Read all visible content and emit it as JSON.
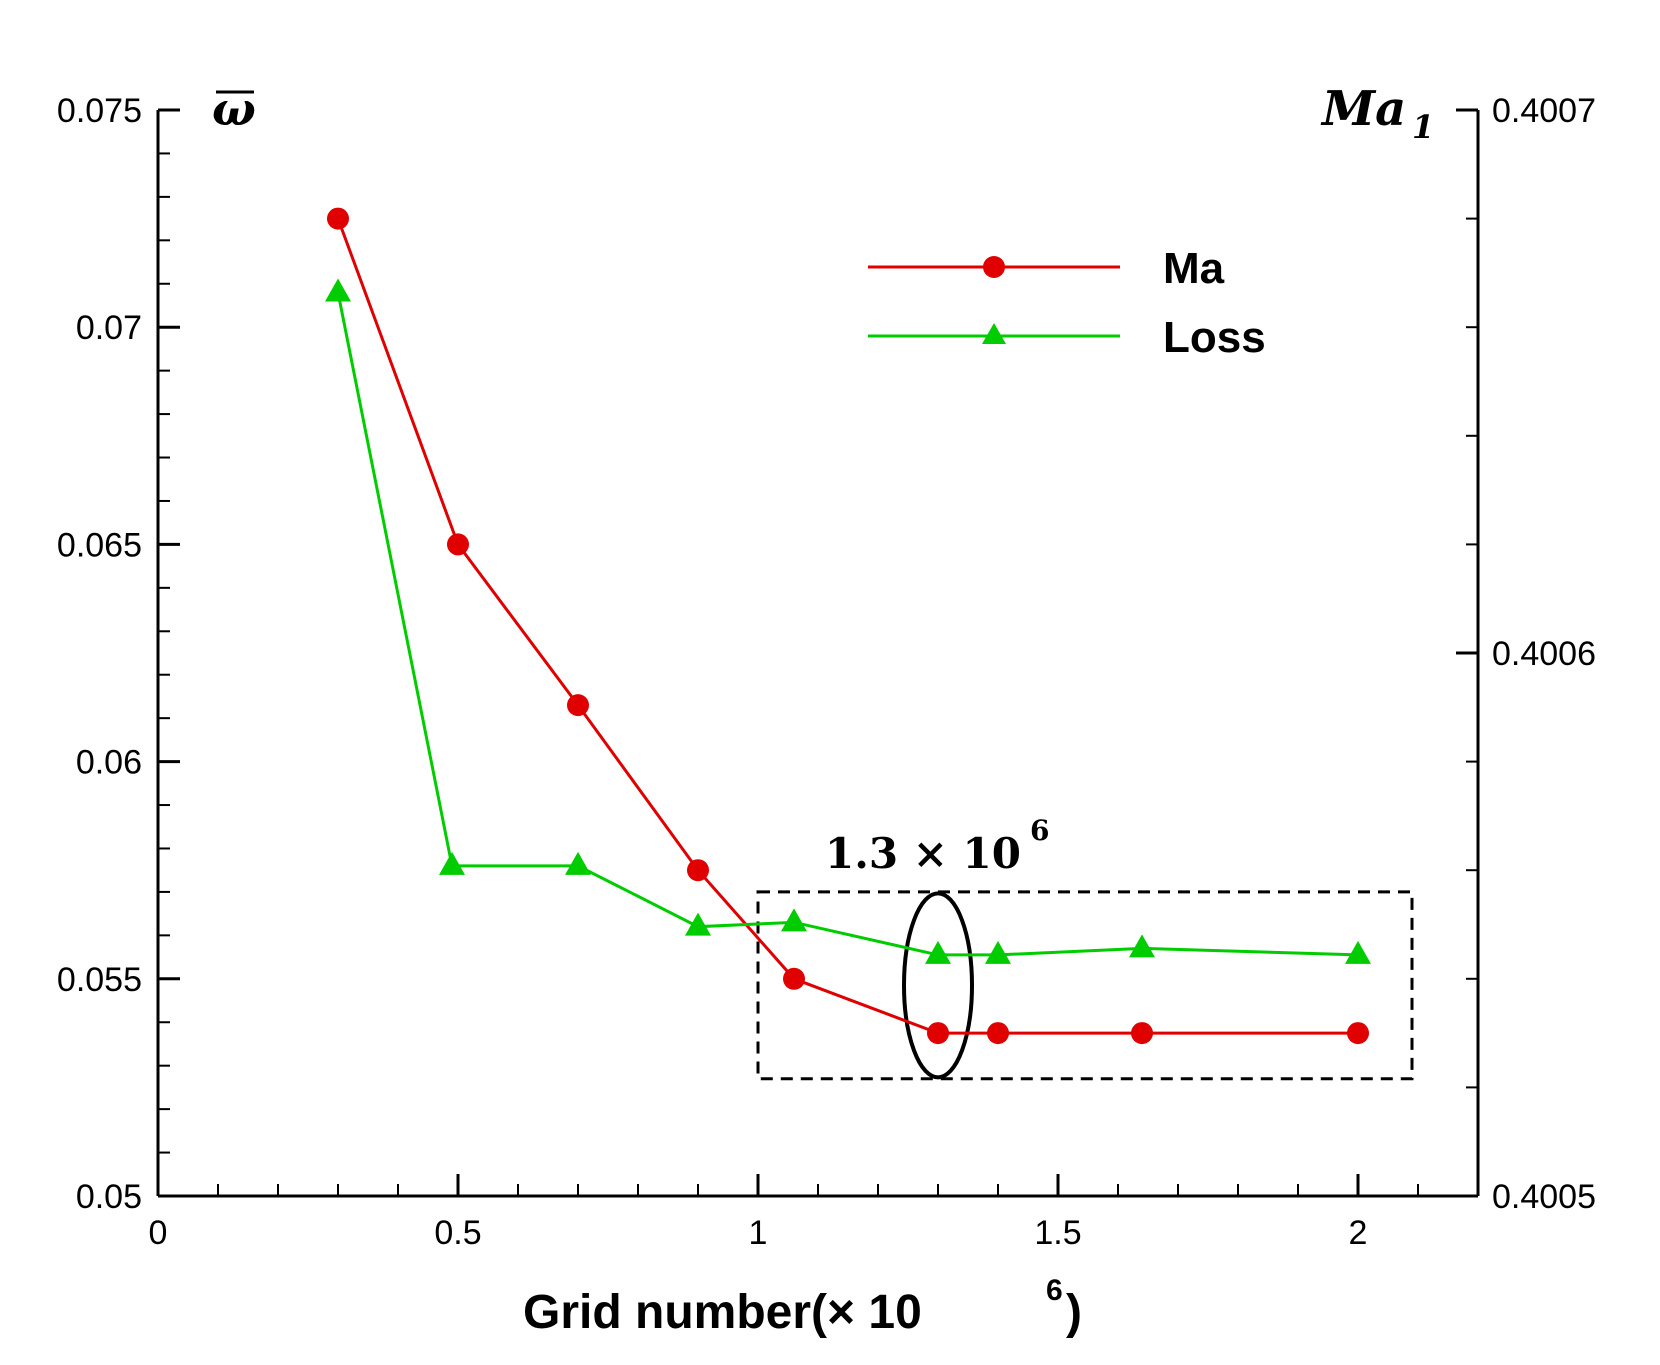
{
  "chart_data": {
    "type": "line",
    "xlabel": "Grid number(× 10",
    "xlabel_exp": "6",
    "xlabel_close": ")",
    "xlim": [
      0,
      2.2
    ],
    "x_ticks": [
      "0",
      "0.5",
      "1",
      "1.5",
      "2"
    ],
    "x_tick_values": [
      0,
      0.5,
      1,
      1.5,
      2
    ],
    "left_axis": {
      "label": "ω",
      "ylim": [
        0.05,
        0.075
      ],
      "ticks": [
        "0.05",
        "0.055",
        "0.06",
        "0.065",
        "0.07",
        "0.075"
      ],
      "tick_values": [
        0.05,
        0.055,
        0.06,
        0.065,
        0.07,
        0.075
      ]
    },
    "right_axis": {
      "label": "Ma",
      "label_sub": "1",
      "ylim": [
        0.4005,
        0.4007
      ],
      "ticks": [
        "0.4005",
        "0.4006",
        "0.4007"
      ],
      "tick_values": [
        0.4005,
        0.4006,
        0.4007
      ]
    },
    "series": [
      {
        "name": "Ma",
        "color": "#e00000",
        "marker": "circle",
        "axis": "left",
        "x": [
          0.3,
          0.5,
          0.7,
          0.9,
          1.06,
          1.3,
          1.4,
          1.64,
          2.0
        ],
        "values": [
          0.0725,
          0.065,
          0.0613,
          0.0575,
          0.055,
          0.05375,
          0.05375,
          0.05375,
          0.05375
        ]
      },
      {
        "name": "Loss",
        "color": "#00cc00",
        "marker": "triangle",
        "axis": "left",
        "x": [
          0.3,
          0.49,
          0.7,
          0.9,
          1.06,
          1.3,
          1.4,
          1.64,
          2.0
        ],
        "values": [
          0.0708,
          0.0576,
          0.0576,
          0.0562,
          0.0563,
          0.05555,
          0.05555,
          0.0557,
          0.05555
        ]
      }
    ],
    "legend": [
      "Ma",
      "Loss"
    ],
    "legend_position": "top-right",
    "annotation": {
      "text": "1.3 × 10",
      "exp": "6",
      "highlight_x": 1.3,
      "box_x": [
        1.0,
        2.09
      ],
      "box_y": [
        0.0527,
        0.057
      ]
    }
  }
}
